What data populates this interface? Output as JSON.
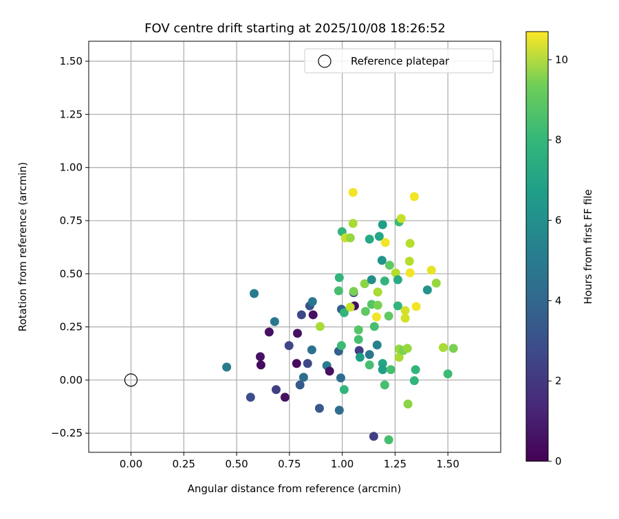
{
  "chart_data": {
    "type": "scatter",
    "title": "FOV centre drift starting at 2025/10/08 18:26:52",
    "xlabel": "Angular distance from reference (arcmin)",
    "ylabel": "Rotation from reference (arcmin)",
    "xlim": [
      -0.2,
      1.75
    ],
    "ylim": [
      -0.34,
      1.594
    ],
    "xticks": [
      "0.00",
      "0.25",
      "0.50",
      "0.75",
      "1.00",
      "1.25",
      "1.50"
    ],
    "xtick_values": [
      0,
      0.25,
      0.5,
      0.75,
      1.0,
      1.25,
      1.5
    ],
    "yticks": [
      "−0.25",
      "0.00",
      "0.25",
      "0.50",
      "0.75",
      "1.00",
      "1.25",
      "1.50"
    ],
    "ytick_values": [
      -0.25,
      0,
      0.25,
      0.5,
      0.75,
      1.0,
      1.25,
      1.5
    ],
    "grid": true,
    "legend": {
      "placement": "top-right",
      "entries": [
        "Reference platepar"
      ]
    },
    "reference_point": [
      0,
      0
    ],
    "colorbar": {
      "label": "Hours from first FF file",
      "range": [
        0,
        10.7
      ],
      "ticks": [
        "0",
        "2",
        "4",
        "6",
        "8",
        "10"
      ],
      "tick_values": [
        0,
        2,
        4,
        6,
        8,
        10
      ]
    },
    "points": [
      [
        0.453,
        0.061,
        4.5
      ],
      [
        0.583,
        0.407,
        4.5
      ],
      [
        0.566,
        -0.081,
        2.5
      ],
      [
        0.612,
        0.11,
        0.5
      ],
      [
        0.615,
        0.071,
        0.3
      ],
      [
        0.654,
        0.226,
        0.5
      ],
      [
        0.68,
        0.275,
        4.3
      ],
      [
        0.687,
        -0.045,
        2.0
      ],
      [
        0.729,
        -0.081,
        0.5
      ],
      [
        0.748,
        0.162,
        2.3
      ],
      [
        0.784,
        0.078,
        0.3
      ],
      [
        0.788,
        0.22,
        0.5
      ],
      [
        0.8,
        -0.023,
        3.0
      ],
      [
        0.807,
        0.307,
        2.3
      ],
      [
        0.817,
        0.013,
        3.8
      ],
      [
        0.836,
        0.078,
        2.3
      ],
      [
        0.846,
        0.349,
        2.8
      ],
      [
        0.859,
        0.369,
        4.3
      ],
      [
        0.862,
        0.307,
        0.5
      ],
      [
        0.856,
        0.142,
        4.0
      ],
      [
        0.895,
        0.252,
        9.3
      ],
      [
        0.892,
        -0.133,
        3.0
      ],
      [
        0.927,
        0.068,
        4.5
      ],
      [
        0.94,
        0.042,
        0.5
      ],
      [
        0.983,
        0.136,
        3.3
      ],
      [
        0.986,
        0.482,
        7.0
      ],
      [
        0.983,
        0.42,
        7.5
      ],
      [
        0.986,
        -0.142,
        3.8
      ],
      [
        0.996,
        0.333,
        3.3
      ],
      [
        0.993,
        0.01,
        3.8
      ],
      [
        0.996,
        0.162,
        7.3
      ],
      [
        0.999,
        0.698,
        7.0
      ],
      [
        1.009,
        -0.045,
        7.0
      ],
      [
        1.009,
        0.317,
        7.0
      ],
      [
        1.015,
        0.669,
        9.8
      ],
      [
        1.038,
        0.669,
        9.0
      ],
      [
        1.051,
        0.883,
        10.5
      ],
      [
        1.051,
        0.737,
        9.3
      ],
      [
        1.054,
        0.411,
        2.5
      ],
      [
        1.054,
        0.417,
        8.5
      ],
      [
        1.058,
        0.349,
        0.3
      ],
      [
        1.038,
        0.343,
        9.8
      ],
      [
        1.077,
        0.236,
        7.8
      ],
      [
        1.077,
        0.191,
        7.5
      ],
      [
        1.08,
        0.139,
        2.0
      ],
      [
        1.084,
        0.107,
        6.0
      ],
      [
        1.106,
        0.453,
        8.8
      ],
      [
        1.11,
        0.323,
        8.0
      ],
      [
        1.129,
        0.071,
        7.5
      ],
      [
        1.129,
        0.12,
        4.3
      ],
      [
        1.129,
        0.663,
        6.5
      ],
      [
        1.139,
        0.472,
        5.3
      ],
      [
        1.139,
        0.356,
        7.8
      ],
      [
        1.149,
        -0.265,
        2.0
      ],
      [
        1.152,
        0.252,
        7.5
      ],
      [
        1.162,
        0.297,
        10.5
      ],
      [
        1.168,
        0.352,
        8.5
      ],
      [
        1.168,
        0.414,
        9.3
      ],
      [
        1.165,
        0.165,
        4.8
      ],
      [
        1.175,
        0.676,
        6.3
      ],
      [
        1.188,
        0.563,
        5.5
      ],
      [
        1.191,
        0.731,
        6.0
      ],
      [
        1.191,
        0.078,
        6.3
      ],
      [
        1.191,
        0.049,
        6.0
      ],
      [
        1.201,
        0.466,
        7.0
      ],
      [
        1.204,
        0.647,
        10.5
      ],
      [
        1.224,
        0.54,
        8.0
      ],
      [
        1.22,
        0.301,
        8.0
      ],
      [
        1.23,
        0.049,
        7.5
      ],
      [
        1.22,
        -0.281,
        7.5
      ],
      [
        1.201,
        -0.023,
        7.5
      ],
      [
        1.253,
        0.504,
        9.5
      ],
      [
        1.269,
        0.107,
        9.3
      ],
      [
        1.269,
        0.146,
        9.0
      ],
      [
        1.263,
        0.472,
        6.5
      ],
      [
        1.263,
        0.349,
        7.0
      ],
      [
        1.269,
        0.744,
        7.3
      ],
      [
        1.279,
        0.76,
        9.8
      ],
      [
        1.289,
        0.139,
        8.5
      ],
      [
        1.298,
        0.291,
        10.0
      ],
      [
        1.298,
        0.327,
        10.0
      ],
      [
        1.308,
        0.149,
        9.0
      ],
      [
        1.311,
        -0.113,
        8.8
      ],
      [
        1.321,
        0.504,
        10.5
      ],
      [
        1.318,
        0.559,
        9.5
      ],
      [
        1.321,
        0.643,
        9.5
      ],
      [
        1.341,
        0.863,
        10.5
      ],
      [
        1.35,
        0.346,
        10.5
      ],
      [
        1.347,
        0.049,
        7.0
      ],
      [
        1.341,
        -0.003,
        7.0
      ],
      [
        1.403,
        0.424,
        5.5
      ],
      [
        1.422,
        0.517,
        10.3
      ],
      [
        1.445,
        0.456,
        9.0
      ],
      [
        1.478,
        0.153,
        9.3
      ],
      [
        1.526,
        0.149,
        8.5
      ],
      [
        1.5,
        0.029,
        7.3
      ]
    ]
  }
}
